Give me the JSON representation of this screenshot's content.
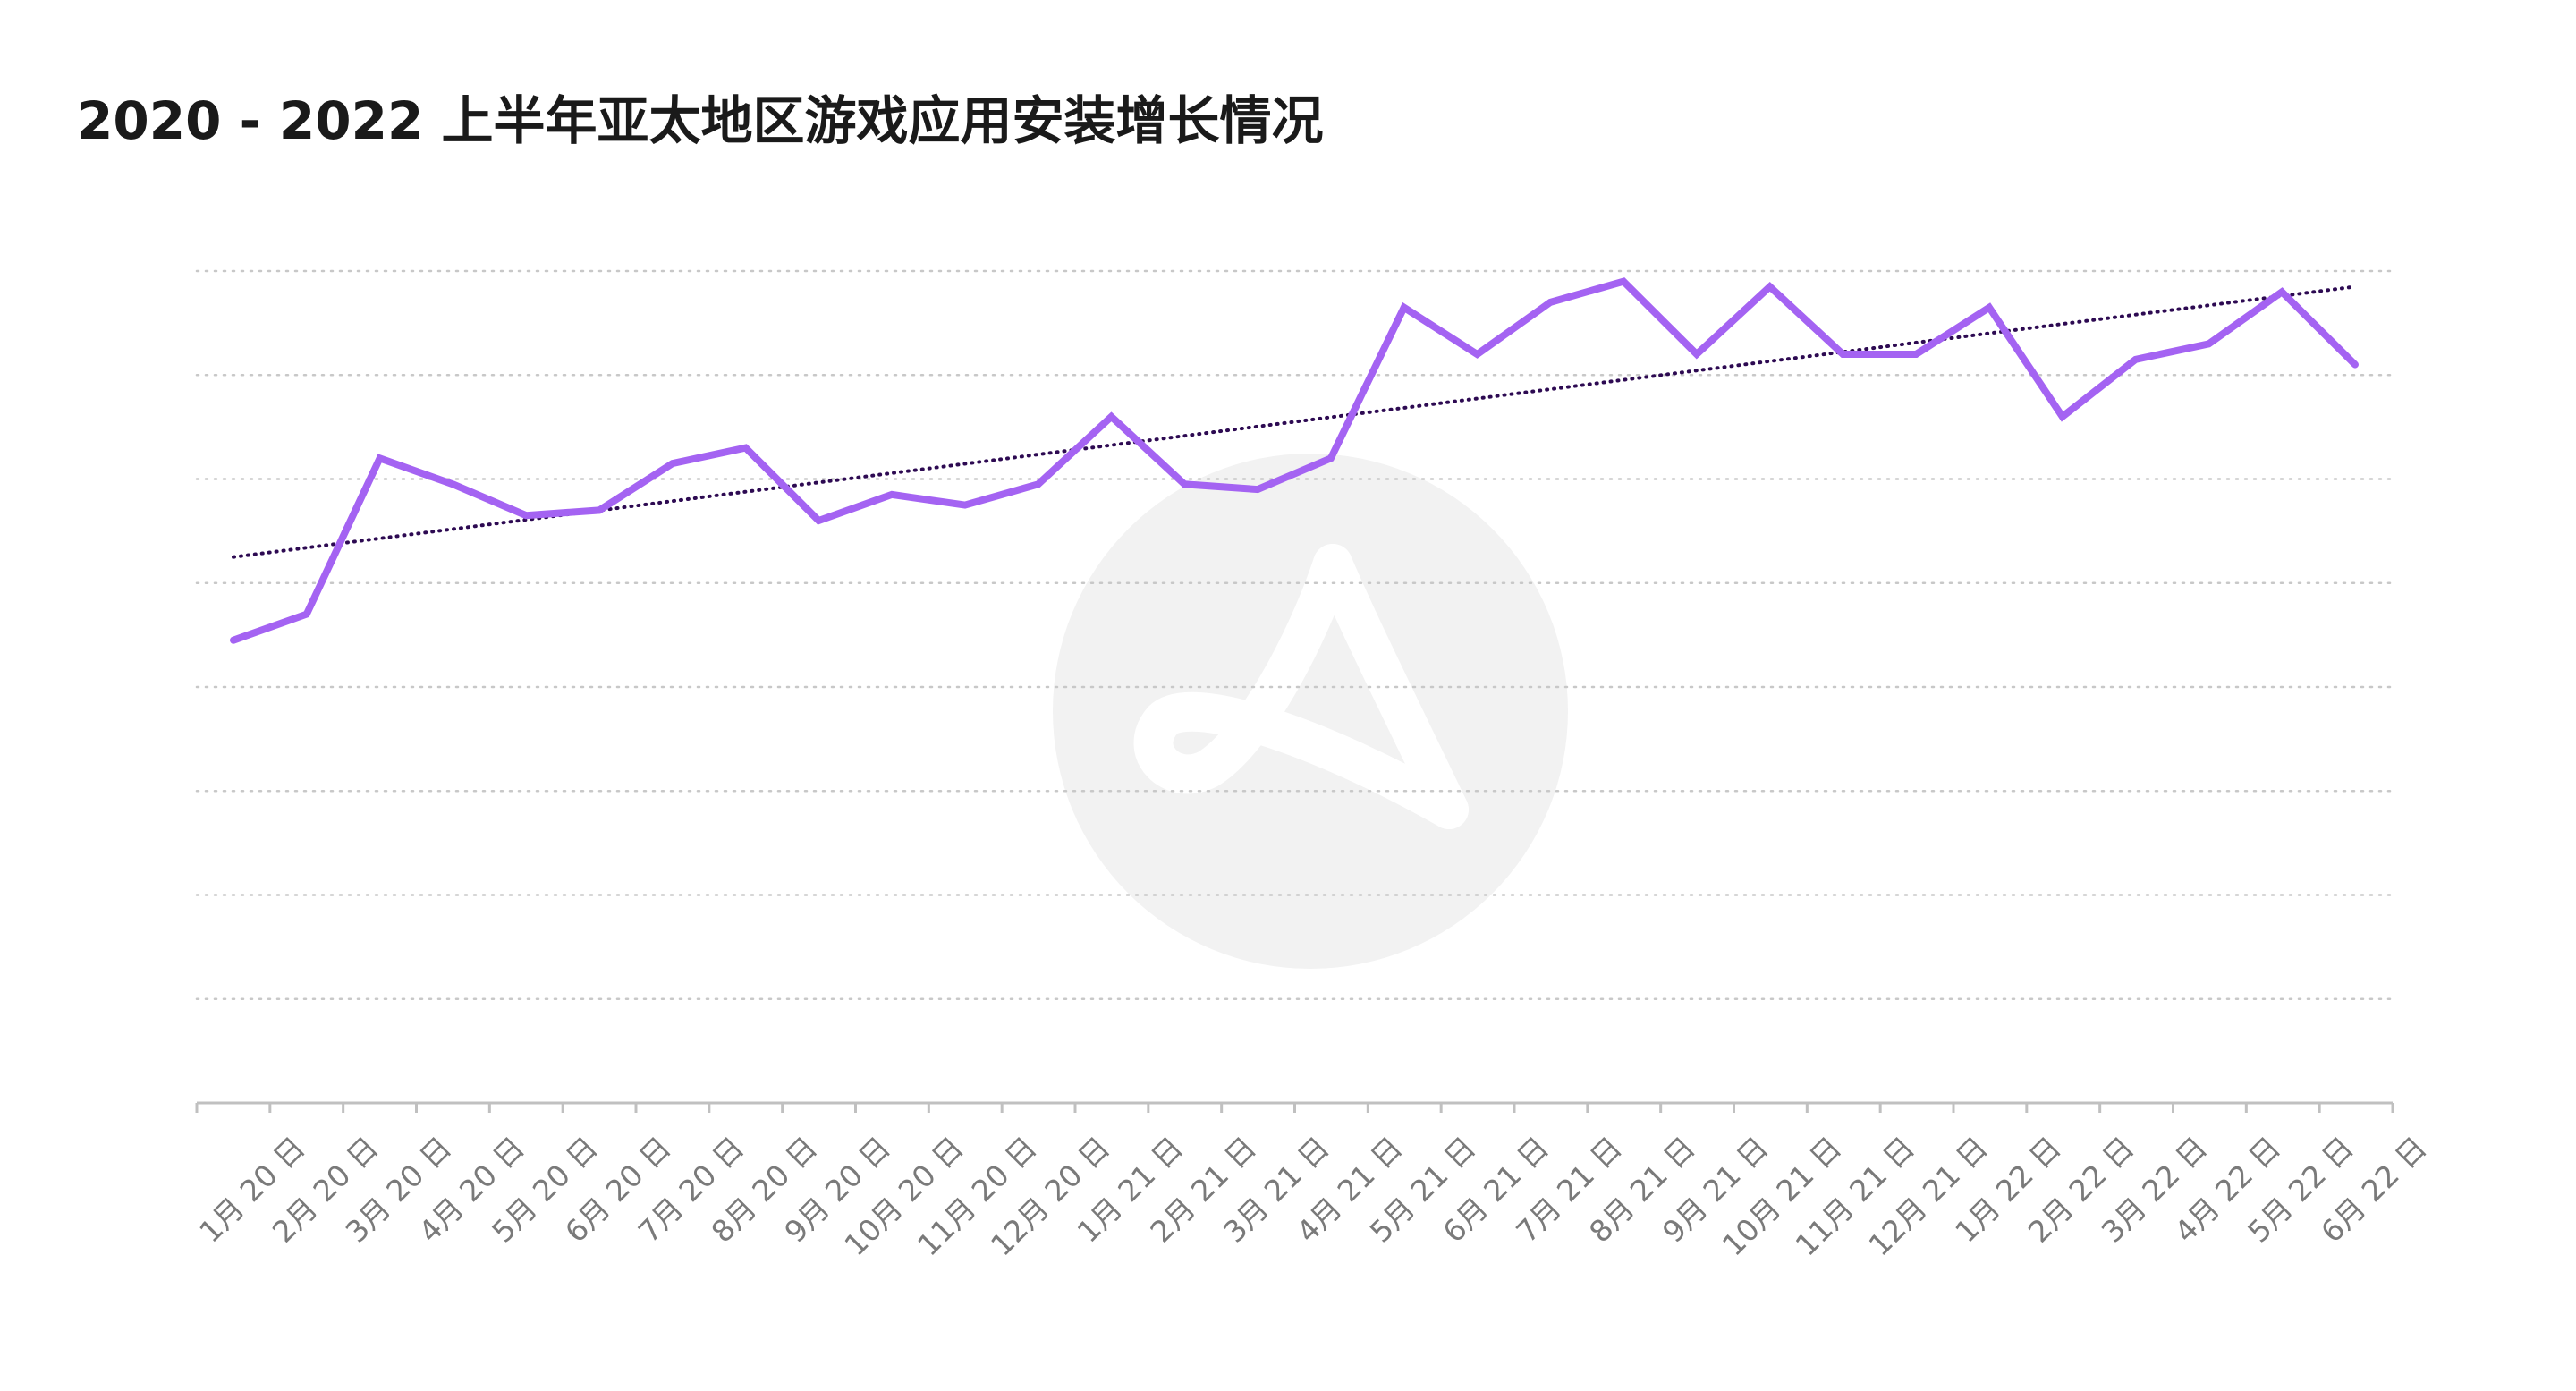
{
  "title": "2020 - 2022 上半年亚太地区游戏应用安装增长情况",
  "chart_data": {
    "type": "line",
    "title": "2020 - 2022 上半年亚太地区游戏应用安装增长情况",
    "categories": [
      "1月 20 日",
      "2月 20 日",
      "3月 20 日",
      "4月 20 日",
      "5月 20 日",
      "6月 20 日",
      "7月 20 日",
      "8月 20 日",
      "9月 20 日",
      "10月 20 日",
      "11月 20 日",
      "12月 20 日",
      "1月 21 日",
      "2月 21 日",
      "3月 21 日",
      "4月 21 日",
      "5月 21 日",
      "6月 21 日",
      "7月 21 日",
      "8月 21 日",
      "9月 21 日",
      "10月 21 日",
      "11月 21 日",
      "12月 21 日",
      "1月 22 日",
      "2月 22 日",
      "3月 22 日",
      "4月 22 日",
      "5月 22 日",
      "6月 22 日"
    ],
    "series": [
      {
        "values": [
          4.45,
          4.7,
          6.2,
          5.95,
          5.65,
          5.7,
          6.15,
          6.3,
          5.6,
          5.85,
          5.75,
          5.95,
          6.6,
          5.95,
          5.9,
          6.2,
          7.65,
          7.2,
          7.7,
          7.9,
          7.2,
          7.85,
          7.2,
          7.2,
          7.65,
          6.6,
          7.15,
          7.3,
          7.8,
          7.1
        ]
      }
    ],
    "trendline": {
      "style": "dotted",
      "start": 5.25,
      "end": 7.85
    },
    "ylim": [
      0,
      8
    ],
    "y_gridlines": 8,
    "show_y_tick_labels": false,
    "colors": {
      "line": "#a463f2",
      "trend": "#2d0a52",
      "grid": "#c8c8c8",
      "axis": "#c0c0c0"
    },
    "watermark": "logo-watermark"
  }
}
